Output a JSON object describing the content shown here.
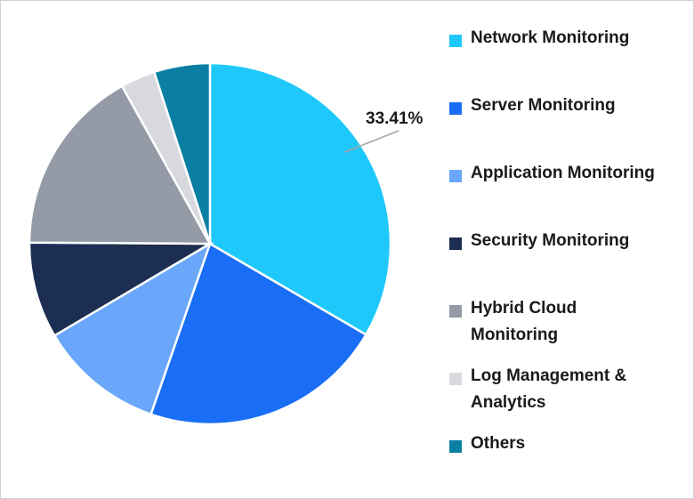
{
  "chart_data": {
    "type": "pie",
    "categories": [
      "Network Monitoring",
      "Server Monitoring",
      "Application Monitoring",
      "Security Monitoring",
      "Hybrid Cloud Monitoring",
      "Log Management & Analytics",
      "Others"
    ],
    "values": [
      33.41,
      21.9,
      11.2,
      8.6,
      16.8,
      3.1,
      5.0
    ],
    "value_labels": [
      "33.41%",
      null,
      null,
      null,
      null,
      null,
      null
    ],
    "colors": [
      "#1ec8fa",
      "#1a6ef5",
      "#6aa7fa",
      "#1c2e52",
      "#949aa6",
      "#d7d9de",
      "#0a7fa3"
    ]
  }
}
